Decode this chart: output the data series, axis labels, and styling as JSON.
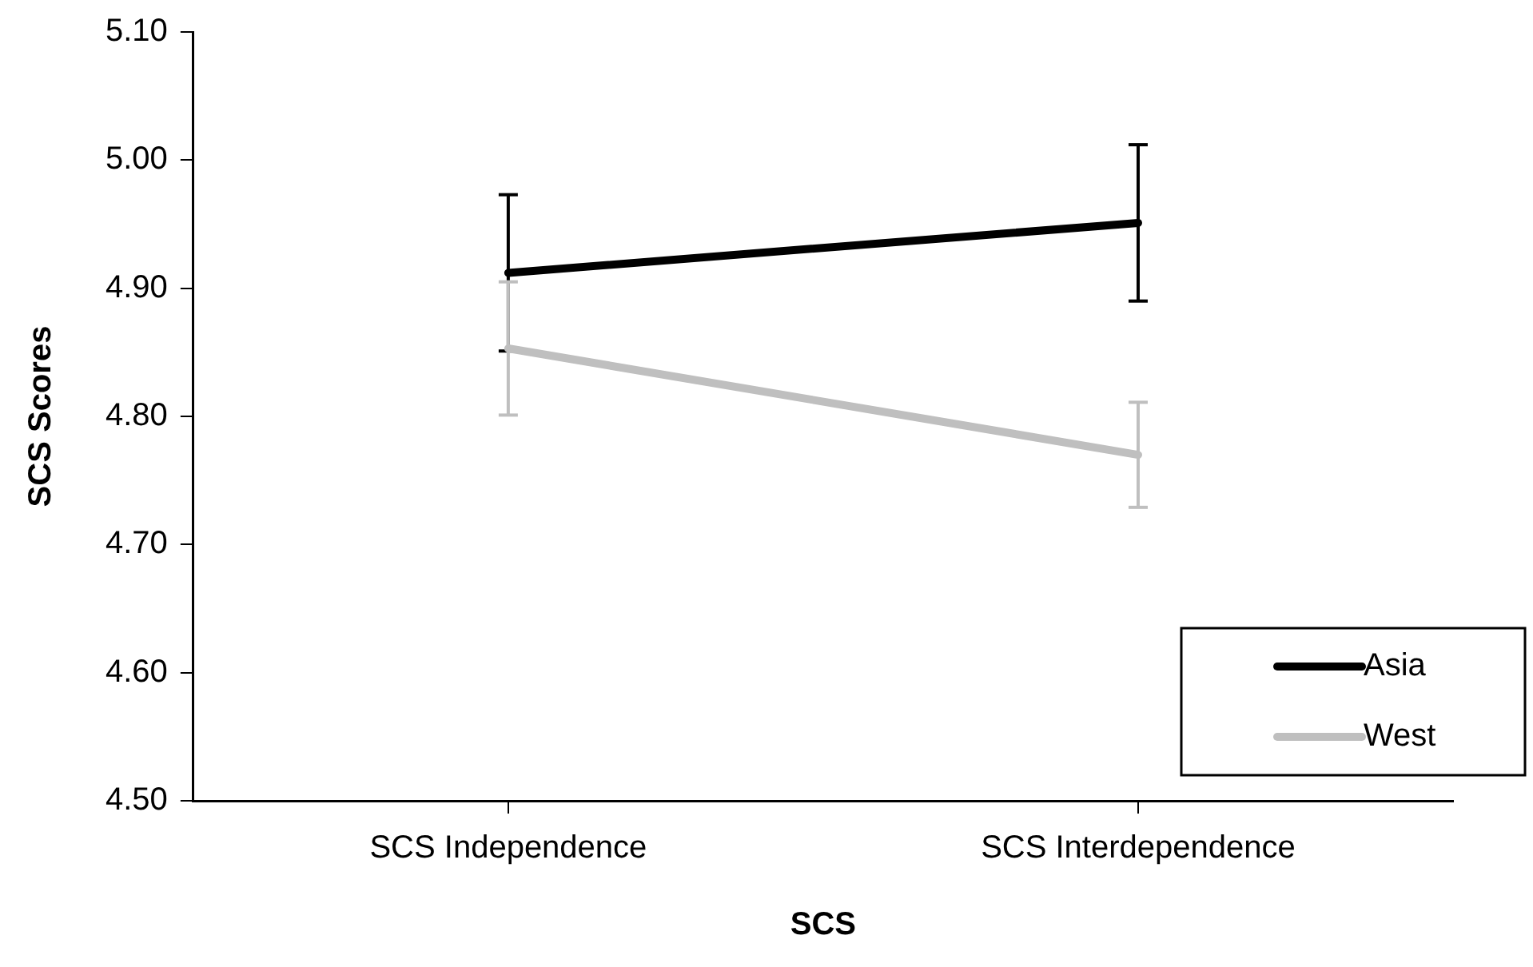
{
  "chart_data": {
    "type": "line",
    "xlabel": "SCS",
    "ylabel": "SCS Scores",
    "categories": [
      "SCS Independence",
      "SCS Interdependence"
    ],
    "series": [
      {
        "name": "Asia",
        "color": "#000000",
        "values": [
          4.912,
          4.951
        ],
        "errors": [
          0.061,
          0.061
        ]
      },
      {
        "name": "West",
        "color": "#bfbfbf",
        "values": [
          4.853,
          4.77
        ],
        "errors": [
          0.052,
          0.041
        ]
      }
    ],
    "ylim": [
      4.5,
      5.1
    ],
    "yticks": [
      {
        "value": 4.5,
        "label": "4.50"
      },
      {
        "value": 4.6,
        "label": "4.60"
      },
      {
        "value": 4.7,
        "label": "4.70"
      },
      {
        "value": 4.8,
        "label": "4.80"
      },
      {
        "value": 4.9,
        "label": "4.90"
      },
      {
        "value": 5.0,
        "label": "5.00"
      },
      {
        "value": 5.1,
        "label": "5.10"
      }
    ],
    "grid": false,
    "legend": "bottom right",
    "marker": "none",
    "line_style": "solid"
  }
}
